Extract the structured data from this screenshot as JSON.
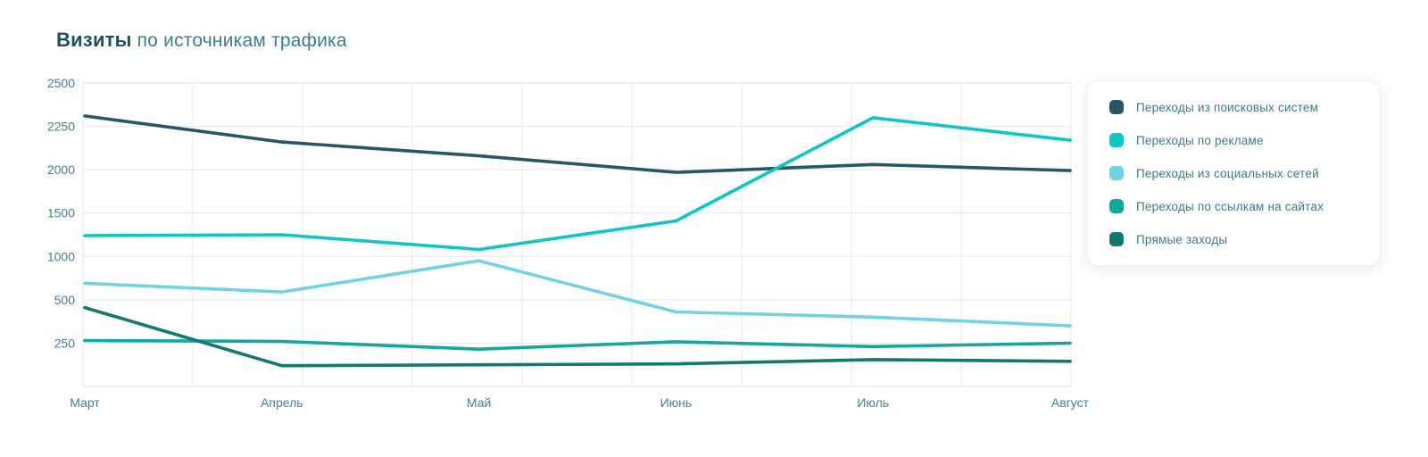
{
  "chart": {
    "title_bold": "Визиты",
    "title_rest": " по источникам трафика"
  },
  "chart_data": {
    "type": "line",
    "title": "Визиты по источникам трафика",
    "categories": [
      "Март",
      "Апрель",
      "Май",
      "Июнь",
      "Июль",
      "Август"
    ],
    "y_ticks": [
      2500,
      2250,
      2000,
      1500,
      1000,
      500,
      250
    ],
    "y_scale_breakpoints": [
      2500,
      2250,
      2000,
      1500,
      1000,
      500,
      250,
      0
    ],
    "axis_note": "non-linear axis: each tick interval occupies one equal band",
    "grid": {
      "vertical_divisions": 9,
      "gridlines": true
    },
    "legend_position": "right",
    "xlabel": "",
    "ylabel": "",
    "series": [
      {
        "name": "Переходы из поисковых систем",
        "color": "#255863",
        "values": [
          2310,
          2160,
          2080,
          1970,
          2030,
          1990
        ]
      },
      {
        "name": "Переходы по рекламе",
        "color": "#0cc7c3",
        "values": [
          1240,
          1250,
          1080,
          1410,
          2300,
          2170
        ]
      },
      {
        "name": "Переходы из социальных сетей",
        "color": "#6fd4e0",
        "values": [
          690,
          590,
          950,
          430,
          400,
          350
        ]
      },
      {
        "name": "Переходы по ссылкам на сайтах",
        "color": "#0faa9a",
        "values": [
          265,
          260,
          215,
          258,
          230,
          250
        ]
      },
      {
        "name": "Прямые заходы",
        "color": "#12796c",
        "values": [
          455,
          120,
          125,
          130,
          155,
          145
        ]
      }
    ],
    "colors": {
      "grid": "#ebebeb",
      "axis_text": "#47808e"
    }
  }
}
